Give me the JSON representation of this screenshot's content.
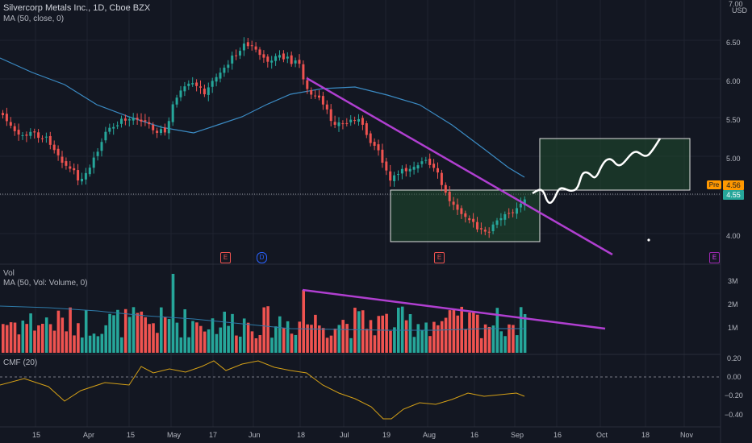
{
  "header": {
    "title": "Silvercorp Metals Inc., 1D, Cboe BZX",
    "ma_label": "MA (50, close, 0)"
  },
  "volume_pane": {
    "title": "Vol",
    "ma_label": "MA (50, Vol: Volume, 0)",
    "ticks": [
      "3M",
      "2M",
      "1M"
    ]
  },
  "cmf_pane": {
    "title": "CMF (20)",
    "ticks": [
      "0.20",
      "0.00",
      "−0.20",
      "−0.40"
    ]
  },
  "price_axis": {
    "currency": "USD",
    "ticks": [
      "7.00",
      "6.50",
      "6.00",
      "5.50",
      "5.00",
      "4.00"
    ],
    "current_price": "4.55",
    "prev_label": "Pre",
    "prev_price": "4.56"
  },
  "time_axis": {
    "ticks": [
      "15",
      "Apr",
      "15",
      "May",
      "17",
      "Jun",
      "18",
      "Jul",
      "19",
      "Aug",
      "16",
      "Sep",
      "16",
      "Oct",
      "18",
      "Nov"
    ]
  },
  "event_badges": [
    "E",
    "D",
    "E",
    "E"
  ],
  "colors": {
    "bg": "#131722",
    "up": "#26a69a",
    "down": "#ef5350",
    "ma": "#2196f3",
    "trendline": "#ab47bc",
    "box": "#1b5e20",
    "cmf": "#ffb300"
  }
}
